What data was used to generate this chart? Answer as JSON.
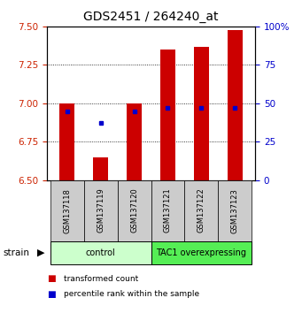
{
  "title": "GDS2451 / 264240_at",
  "samples": [
    "GSM137118",
    "GSM137119",
    "GSM137120",
    "GSM137121",
    "GSM137122",
    "GSM137123"
  ],
  "bar_values": [
    7.0,
    6.65,
    7.0,
    7.35,
    7.37,
    7.48
  ],
  "blue_dot_values": [
    6.945,
    6.875,
    6.945,
    6.97,
    6.97,
    6.97
  ],
  "bar_bottom": 6.5,
  "ylim": [
    6.5,
    7.5
  ],
  "yticks_left": [
    6.5,
    6.75,
    7.0,
    7.25,
    7.5
  ],
  "yticks_right": [
    0,
    25,
    50,
    75,
    100
  ],
  "bar_color": "#cc0000",
  "dot_color": "#0000cc",
  "groups": [
    {
      "label": "control",
      "indices": [
        0,
        1,
        2
      ],
      "color": "#ccffcc"
    },
    {
      "label": "TAC1 overexpressing",
      "indices": [
        3,
        4,
        5
      ],
      "color": "#55ee55"
    }
  ],
  "strain_label": "strain",
  "legend_items": [
    {
      "color": "#cc0000",
      "label": "transformed count"
    },
    {
      "color": "#0000cc",
      "label": "percentile rank within the sample"
    }
  ],
  "title_fontsize": 10,
  "tick_label_color_left": "#cc2200",
  "tick_label_color_right": "#0000cc",
  "bar_width": 0.45,
  "background_color": "#ffffff",
  "grid_color": "#000000",
  "sample_box_color": "#cccccc"
}
